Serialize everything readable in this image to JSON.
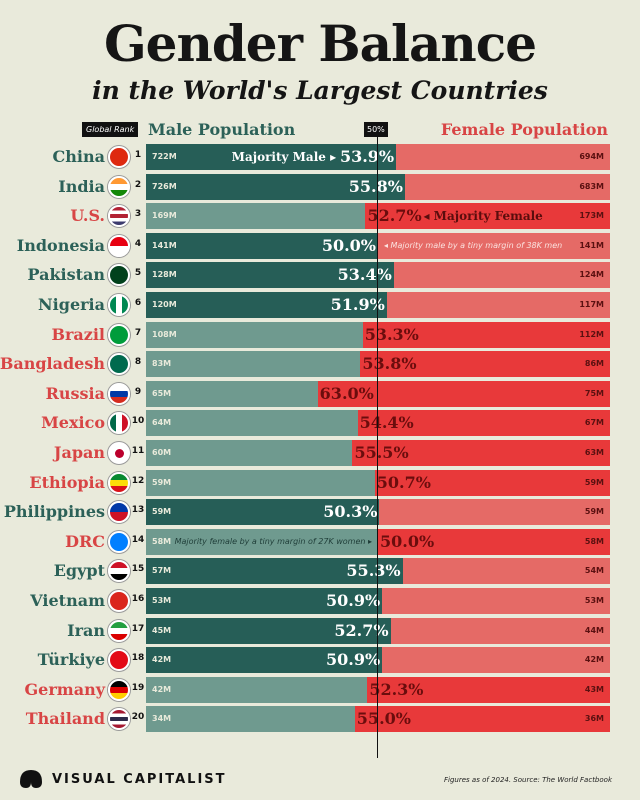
{
  "chart_data": {
    "type": "bar",
    "title": "Gender Balance",
    "subtitle": "in the World's Largest Countries",
    "rank_header": "Global Rank",
    "male_header": "Male Population",
    "female_header": "Female Population",
    "midpoint_label": "50%",
    "colors": {
      "male_majority": "#265e57",
      "male_minority": "#6f9a8f",
      "female_majority": "#e8393a",
      "female_minority": "#e56a66",
      "male_text": "#2c6158",
      "female_text": "#d84545"
    },
    "rows": [
      {
        "rank": "1",
        "country": "China",
        "male": "722M",
        "female": "694M",
        "majority": "male",
        "pct": 53.9,
        "pct_label": "53.9%",
        "note": "Majority Male",
        "flag": [
          "#de2910"
        ]
      },
      {
        "rank": "2",
        "country": "India",
        "male": "726M",
        "female": "683M",
        "majority": "male",
        "pct": 55.8,
        "pct_label": "55.8%",
        "flag": [
          "#ff9933",
          "#ffffff",
          "#138808"
        ]
      },
      {
        "rank": "3",
        "country": "U.S.",
        "male": "169M",
        "female": "173M",
        "majority": "female",
        "pct": 52.7,
        "pct_label": "52.7%",
        "note": "Majority Female",
        "flag": [
          "#b22234",
          "#ffffff",
          "#b22234",
          "#ffffff",
          "#3c3b6e"
        ]
      },
      {
        "rank": "4",
        "country": "Indonesia",
        "male": "141M",
        "female": "141M",
        "majority": "male",
        "pct": 50.0,
        "pct_label": "50.0%",
        "note": "Majority male by a tiny margin of 38K men",
        "flag": [
          "#e70011",
          "#ffffff"
        ]
      },
      {
        "rank": "5",
        "country": "Pakistan",
        "male": "128M",
        "female": "124M",
        "majority": "male",
        "pct": 53.4,
        "pct_label": "53.4%",
        "flag": [
          "#01411c"
        ]
      },
      {
        "rank": "6",
        "country": "Nigeria",
        "male": "120M",
        "female": "117M",
        "majority": "male",
        "pct": 51.9,
        "pct_label": "51.9%",
        "flag": [
          "#008751",
          "#ffffff",
          "#008751"
        ],
        "vertical": true
      },
      {
        "rank": "7",
        "country": "Brazil",
        "male": "108M",
        "female": "112M",
        "majority": "female",
        "pct": 53.3,
        "pct_label": "53.3%",
        "flag": [
          "#009c3b"
        ]
      },
      {
        "rank": "8",
        "country": "Bangladesh",
        "male": "83M",
        "female": "86M",
        "majority": "female",
        "pct": 53.8,
        "pct_label": "53.8%",
        "flag": [
          "#006a4e"
        ]
      },
      {
        "rank": "9",
        "country": "Russia",
        "male": "65M",
        "female": "75M",
        "majority": "female",
        "pct": 63.0,
        "pct_label": "63.0%",
        "flag": [
          "#ffffff",
          "#0039a6",
          "#d52b1e"
        ]
      },
      {
        "rank": "10",
        "country": "Mexico",
        "male": "64M",
        "female": "67M",
        "majority": "female",
        "pct": 54.4,
        "pct_label": "54.4%",
        "flag": [
          "#006847",
          "#ffffff",
          "#ce1126"
        ],
        "vertical": true
      },
      {
        "rank": "11",
        "country": "Japan",
        "male": "60M",
        "female": "63M",
        "majority": "female",
        "pct": 55.5,
        "pct_label": "55.5%",
        "flag": [
          "#ffffff"
        ]
      },
      {
        "rank": "12",
        "country": "Ethiopia",
        "male": "59M",
        "female": "59M",
        "majority": "female",
        "pct": 50.7,
        "pct_label": "50.7%",
        "flag": [
          "#078930",
          "#fcdd09",
          "#da121a"
        ]
      },
      {
        "rank": "13",
        "country": "Philippines",
        "male": "59M",
        "female": "59M",
        "majority": "male",
        "pct": 50.3,
        "pct_label": "50.3%",
        "flag": [
          "#0038a8",
          "#ce1126"
        ]
      },
      {
        "rank": "14",
        "country": "DRC",
        "male": "58M",
        "female": "58M",
        "majority": "female",
        "pct": 50.0,
        "pct_label": "50.0%",
        "note": "Majority female by a tiny margin of 27K women",
        "flag": [
          "#007fff"
        ]
      },
      {
        "rank": "15",
        "country": "Egypt",
        "male": "57M",
        "female": "54M",
        "majority": "male",
        "pct": 55.3,
        "pct_label": "55.3%",
        "flag": [
          "#ce1126",
          "#ffffff",
          "#000000"
        ]
      },
      {
        "rank": "16",
        "country": "Vietnam",
        "male": "53M",
        "female": "53M",
        "majority": "male",
        "pct": 50.9,
        "pct_label": "50.9%",
        "flag": [
          "#da251d"
        ]
      },
      {
        "rank": "17",
        "country": "Iran",
        "male": "45M",
        "female": "44M",
        "majority": "male",
        "pct": 52.7,
        "pct_label": "52.7%",
        "flag": [
          "#239f40",
          "#ffffff",
          "#da0000"
        ]
      },
      {
        "rank": "18",
        "country": "Türkiye",
        "male": "42M",
        "female": "42M",
        "majority": "male",
        "pct": 50.9,
        "pct_label": "50.9%",
        "flag": [
          "#e30a17"
        ]
      },
      {
        "rank": "19",
        "country": "Germany",
        "male": "42M",
        "female": "43M",
        "majority": "female",
        "pct": 52.3,
        "pct_label": "52.3%",
        "flag": [
          "#000000",
          "#dd0000",
          "#ffce00"
        ]
      },
      {
        "rank": "20",
        "country": "Thailand",
        "male": "34M",
        "female": "36M",
        "majority": "female",
        "pct": 55.0,
        "pct_label": "55.0%",
        "flag": [
          "#a51931",
          "#ffffff",
          "#2d2a4a",
          "#ffffff",
          "#a51931"
        ]
      }
    ]
  },
  "footer": {
    "brand": "VISUAL CAPITALIST",
    "source": "Figures as of 2024. Source: The World Factbook"
  }
}
